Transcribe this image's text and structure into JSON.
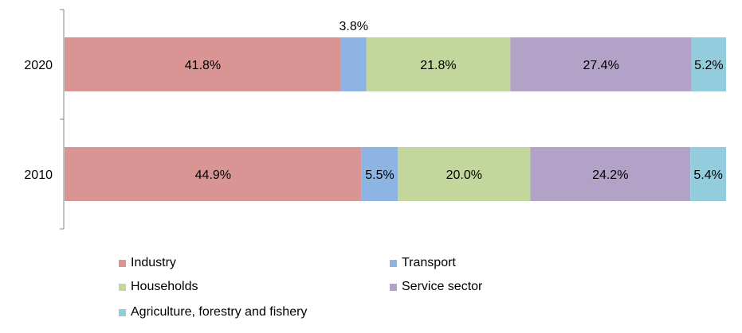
{
  "chart_data": {
    "type": "bar",
    "orientation": "horizontal",
    "stacked": true,
    "normalized": true,
    "title": "",
    "xlabel": "",
    "ylabel": "",
    "categories": [
      "2020",
      "2010"
    ],
    "series": [
      {
        "name": "Industry",
        "color": "#d99594",
        "values": [
          41.8,
          44.9
        ],
        "labels": [
          "41.8%",
          "44.9%"
        ]
      },
      {
        "name": "Transport",
        "color": "#8eb4e3",
        "values": [
          3.8,
          5.5
        ],
        "labels": [
          "3.8%",
          "5.5%"
        ]
      },
      {
        "name": "Households",
        "color": "#c3d69b",
        "values": [
          21.8,
          20.0
        ],
        "labels": [
          "21.8%",
          "20.0%"
        ]
      },
      {
        "name": "Service sector",
        "color": "#b2a2c7",
        "values": [
          27.4,
          24.2
        ],
        "labels": [
          "27.4%",
          "24.2%"
        ]
      },
      {
        "name": "Agriculture, forestry and fishery",
        "color": "#93cddd",
        "values": [
          5.2,
          5.4
        ],
        "labels": [
          "5.2%",
          "5.4%"
        ]
      }
    ],
    "grid": false,
    "legend_position": "bottom"
  }
}
